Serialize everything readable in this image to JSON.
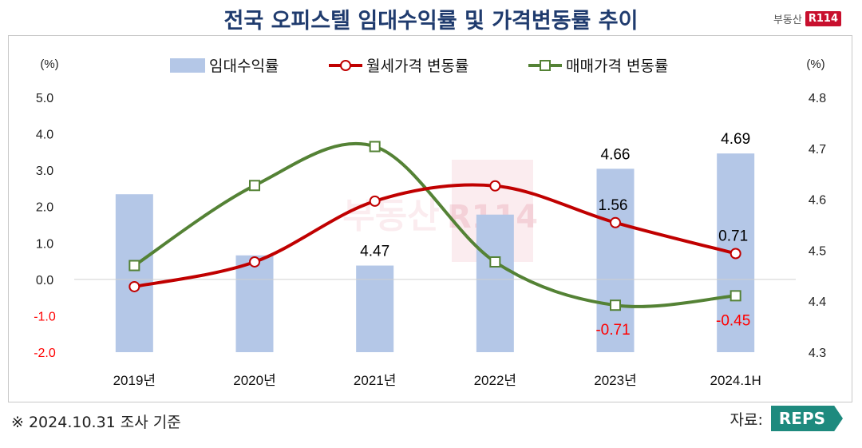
{
  "title": "전국 오피스텔 임대수익률 및 가격변동률 추이",
  "brand": {
    "text": "부동산",
    "badge": "R114"
  },
  "footnote": "※ 2024.10.31 조사 기준",
  "source": {
    "label": "자료:",
    "logo": "REPS"
  },
  "watermark": {
    "text": "부동산",
    "badge": "R114"
  },
  "chart_data": {
    "type": "bar+line",
    "categories": [
      "2019년",
      "2020년",
      "2021년",
      "2022년",
      "2023년",
      "2024.1H"
    ],
    "left_axis": {
      "unit": "(%)",
      "range": [
        -2.0,
        5.0
      ],
      "ticks": [
        "5.0",
        "4.0",
        "3.0",
        "2.0",
        "1.0",
        "0.0",
        "-1.0",
        "-2.0"
      ],
      "tick_values": [
        5,
        4,
        3,
        2,
        1,
        0,
        -1,
        -2
      ]
    },
    "right_axis": {
      "unit": "(%)",
      "range": [
        4.3,
        4.8
      ],
      "ticks": [
        "4.8",
        "4.7",
        "4.6",
        "4.5",
        "4.4",
        "4.3"
      ],
      "tick_values": [
        4.8,
        4.7,
        4.6,
        4.5,
        4.4,
        4.3
      ]
    },
    "series": [
      {
        "name": "임대수익률",
        "kind": "bar",
        "axis": "right",
        "color": "#b4c7e7",
        "values": [
          4.61,
          4.49,
          4.47,
          4.57,
          4.66,
          4.69
        ],
        "labels": [
          "",
          "",
          "4.47",
          "",
          "4.66",
          "4.69"
        ]
      },
      {
        "name": "월세가격 변동률",
        "kind": "line",
        "axis": "left",
        "color": "#c00000",
        "marker": "circle",
        "values": [
          -0.2,
          0.48,
          2.15,
          2.57,
          1.56,
          0.71
        ],
        "labels": [
          "",
          "",
          "",
          "",
          "1.56",
          "0.71"
        ]
      },
      {
        "name": "매매가격 변동률",
        "kind": "line",
        "axis": "left",
        "color": "#548235",
        "marker": "square",
        "values": [
          0.38,
          2.58,
          3.65,
          0.48,
          -0.71,
          -0.45
        ],
        "labels": [
          "",
          "",
          "",
          "",
          "-0.71",
          "-0.45"
        ]
      }
    ],
    "label_colors": {
      "negative": "#ff0000",
      "positive": "#000000"
    }
  }
}
